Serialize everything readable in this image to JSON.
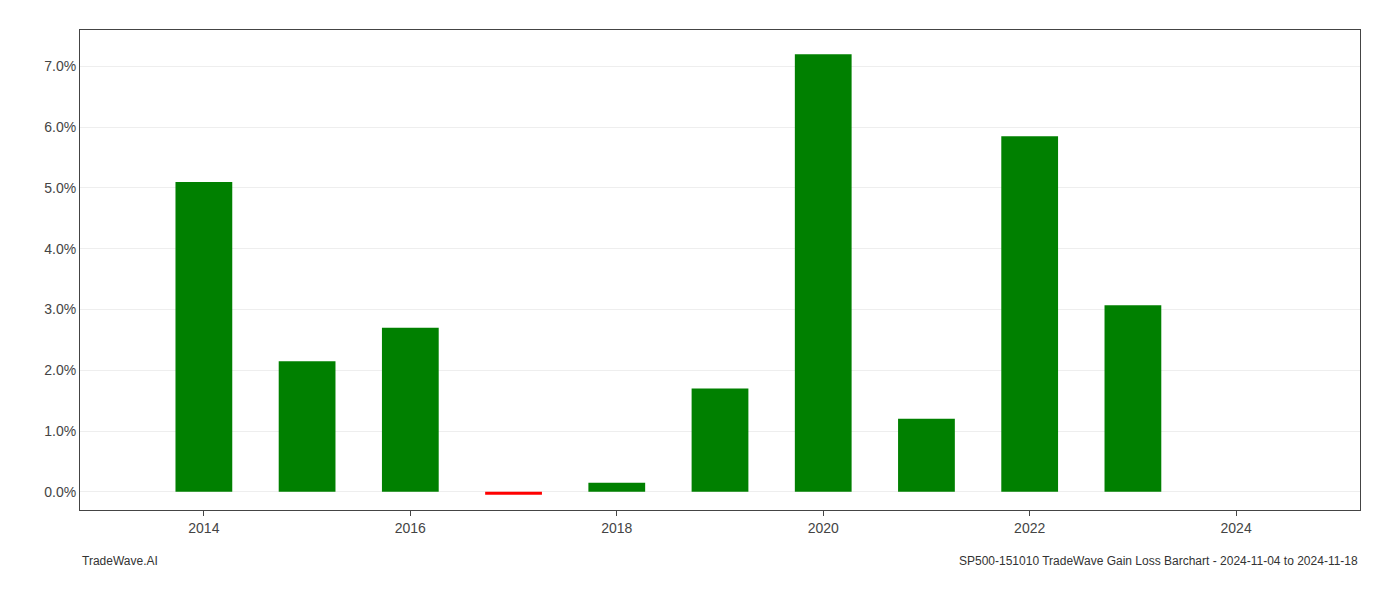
{
  "chart_data": {
    "type": "bar",
    "x": [
      2014,
      2015,
      2016,
      2017,
      2018,
      2019,
      2020,
      2021,
      2022,
      2023
    ],
    "values": [
      0.051,
      0.0215,
      0.027,
      -0.0005,
      0.0015,
      0.017,
      0.072,
      0.012,
      0.0585,
      0.0307
    ],
    "colors": [
      "#008000",
      "#008000",
      "#008000",
      "#ff0000",
      "#008000",
      "#008000",
      "#008000",
      "#008000",
      "#008000",
      "#008000"
    ],
    "xlim": [
      2012.8,
      2025.2
    ],
    "xticks": [
      2014,
      2016,
      2018,
      2020,
      2022,
      2024
    ],
    "ylim": [
      -0.003,
      0.076
    ],
    "yticks": [
      {
        "value": 0.0,
        "label": "0.0%"
      },
      {
        "value": 0.01,
        "label": "1.0%"
      },
      {
        "value": 0.02,
        "label": "2.0%"
      },
      {
        "value": 0.03,
        "label": "3.0%"
      },
      {
        "value": 0.04,
        "label": "4.0%"
      },
      {
        "value": 0.05,
        "label": "5.0%"
      },
      {
        "value": 0.06,
        "label": "6.0%"
      },
      {
        "value": 0.07,
        "label": "7.0%"
      }
    ],
    "grid": true,
    "annotations": [
      "TradeWave.AI",
      "SP500-151010 TradeWave Gain Loss Barchart - 2024-11-04 to 2024-11-18"
    ]
  }
}
